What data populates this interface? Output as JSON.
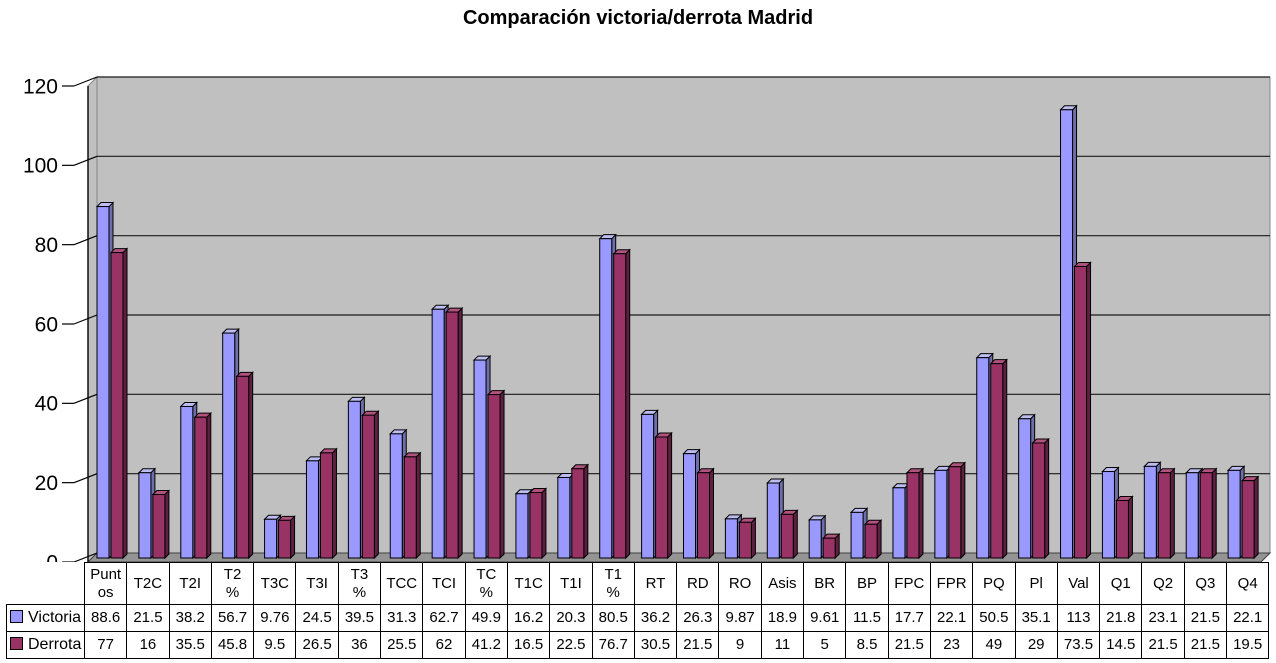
{
  "chart_data": {
    "type": "bar",
    "style": "excel-3d-clustered-column",
    "title": "Comparación victoria/derrota Madrid",
    "xlabel": "",
    "ylabel": "",
    "ylim": [
      0,
      120
    ],
    "y_ticks": [
      0,
      20,
      40,
      60,
      80,
      100,
      120
    ],
    "grid": true,
    "plot_bg_color": "#C0C0C0",
    "floor_color": "#949494",
    "gridline_color": "#1a1a1a",
    "legend_position": "data-table-left",
    "categories": [
      "Puntos",
      "T2C",
      "T2I",
      "T2%",
      "T3C",
      "T3I",
      "T3%",
      "TCC",
      "TCI",
      "TC%",
      "T1C",
      "T1I",
      "T1%",
      "RT",
      "RD",
      "RO",
      "Asis",
      "BR",
      "BP",
      "FPC",
      "FPR",
      "PQ",
      "Pl",
      "Val",
      "Q1",
      "Q2",
      "Q3",
      "Q4"
    ],
    "category_display": [
      "Punt\nos",
      "T2C",
      "T2I",
      "T2\n%",
      "T3C",
      "T3I",
      "T3\n%",
      "TCC",
      "TCI",
      "TC\n%",
      "T1C",
      "T1I",
      "T1\n%",
      "RT",
      "RD",
      "RO",
      "Asis",
      "BR",
      "BP",
      "FPC",
      "FPR",
      "PQ",
      "Pl",
      "Val",
      "Q1",
      "Q2",
      "Q3",
      "Q4"
    ],
    "series": [
      {
        "name": "Victoria",
        "color": "#9999FF",
        "top_color": "#BDBDF2",
        "side_color": "#6E6EA8",
        "values": [
          88.6,
          21.5,
          38.2,
          56.7,
          9.76,
          24.5,
          39.5,
          31.3,
          62.7,
          49.9,
          16.2,
          20.3,
          80.5,
          36.2,
          26.3,
          9.87,
          18.9,
          9.61,
          11.5,
          17.7,
          22.1,
          50.5,
          35.1,
          113,
          21.8,
          23.1,
          21.5,
          22.1
        ]
      },
      {
        "name": "Derrota",
        "color": "#993366",
        "top_color": "#B2527F",
        "side_color": "#5E2040",
        "values": [
          77,
          16,
          35.5,
          45.8,
          9.5,
          26.5,
          36,
          25.5,
          62,
          41.2,
          16.5,
          22.5,
          76.7,
          30.5,
          21.5,
          9,
          11,
          5,
          8.5,
          21.5,
          23,
          49,
          29,
          73.5,
          14.5,
          21.5,
          21.5,
          19.5
        ]
      }
    ]
  }
}
